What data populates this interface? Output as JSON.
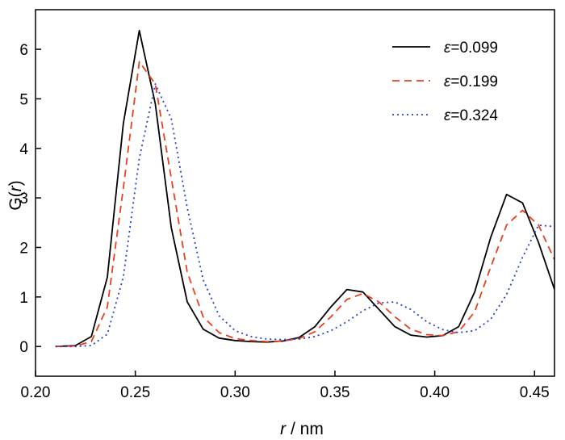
{
  "chart_data": {
    "type": "line",
    "title": "",
    "xlabel": {
      "var": "r",
      "unit": " / nm"
    },
    "ylabel": {
      "func": "G(",
      "var": "r",
      "close": ")"
    },
    "xlim": [
      0.2,
      0.46
    ],
    "ylim": [
      -0.6,
      6.8
    ],
    "xticks": [
      0.2,
      0.25,
      0.3,
      0.35,
      0.4,
      0.45
    ],
    "xtick_labels": [
      "0.20",
      "0.25",
      "0.30",
      "0.35",
      "0.40",
      "0.45"
    ],
    "yticks": [
      0,
      1,
      2,
      3,
      4,
      5,
      6
    ],
    "ytick_labels": [
      "0",
      "1",
      "2",
      "3",
      "4",
      "5",
      "6"
    ],
    "grid": false,
    "legend_position": "top-right",
    "series": [
      {
        "name": "ε=0.099",
        "symbol": "ε",
        "value": "=0.099",
        "color": "#000000",
        "dash": "solid",
        "x": [
          0.21,
          0.22,
          0.228,
          0.236,
          0.244,
          0.252,
          0.26,
          0.268,
          0.276,
          0.284,
          0.292,
          0.3,
          0.308,
          0.316,
          0.324,
          0.332,
          0.34,
          0.348,
          0.356,
          0.364,
          0.372,
          0.38,
          0.388,
          0.396,
          0.404,
          0.412,
          0.42,
          0.428,
          0.436,
          0.444,
          0.452,
          0.46
        ],
        "y": [
          0.0,
          0.02,
          0.2,
          1.4,
          4.5,
          6.38,
          4.9,
          2.4,
          0.9,
          0.35,
          0.17,
          0.12,
          0.1,
          0.09,
          0.11,
          0.18,
          0.4,
          0.8,
          1.15,
          1.1,
          0.75,
          0.4,
          0.23,
          0.19,
          0.22,
          0.4,
          1.1,
          2.2,
          3.07,
          2.9,
          2.1,
          1.15
        ]
      },
      {
        "name": "ε=0.199",
        "symbol": "ε",
        "value": "=0.199",
        "color": "#e8401c",
        "dash": "dashed",
        "x": [
          0.21,
          0.22,
          0.228,
          0.236,
          0.244,
          0.252,
          0.26,
          0.268,
          0.276,
          0.284,
          0.292,
          0.3,
          0.308,
          0.316,
          0.324,
          0.332,
          0.34,
          0.348,
          0.356,
          0.364,
          0.372,
          0.38,
          0.388,
          0.396,
          0.404,
          0.412,
          0.42,
          0.428,
          0.436,
          0.444,
          0.452,
          0.46
        ],
        "y": [
          0.0,
          0.01,
          0.1,
          0.8,
          3.2,
          5.75,
          5.3,
          3.4,
          1.5,
          0.6,
          0.28,
          0.16,
          0.12,
          0.1,
          0.11,
          0.16,
          0.3,
          0.6,
          0.95,
          1.07,
          0.9,
          0.6,
          0.35,
          0.24,
          0.22,
          0.3,
          0.7,
          1.6,
          2.45,
          2.75,
          2.45,
          1.75
        ]
      },
      {
        "name": "ε=0.324",
        "symbol": "ε",
        "value": "=0.324",
        "color": "#2b3bd6",
        "dash": "dotted",
        "x": [
          0.21,
          0.22,
          0.228,
          0.236,
          0.244,
          0.252,
          0.26,
          0.268,
          0.276,
          0.284,
          0.292,
          0.3,
          0.308,
          0.316,
          0.324,
          0.332,
          0.34,
          0.348,
          0.356,
          0.364,
          0.372,
          0.38,
          0.388,
          0.396,
          0.404,
          0.412,
          0.42,
          0.428,
          0.436,
          0.444,
          0.452,
          0.46
        ],
        "y": [
          0.0,
          0.0,
          0.02,
          0.25,
          1.4,
          3.8,
          5.3,
          4.6,
          2.8,
          1.35,
          0.62,
          0.32,
          0.2,
          0.15,
          0.14,
          0.15,
          0.2,
          0.32,
          0.5,
          0.72,
          0.88,
          0.9,
          0.75,
          0.5,
          0.34,
          0.28,
          0.32,
          0.55,
          1.05,
          1.8,
          2.45,
          2.42
        ]
      }
    ]
  }
}
